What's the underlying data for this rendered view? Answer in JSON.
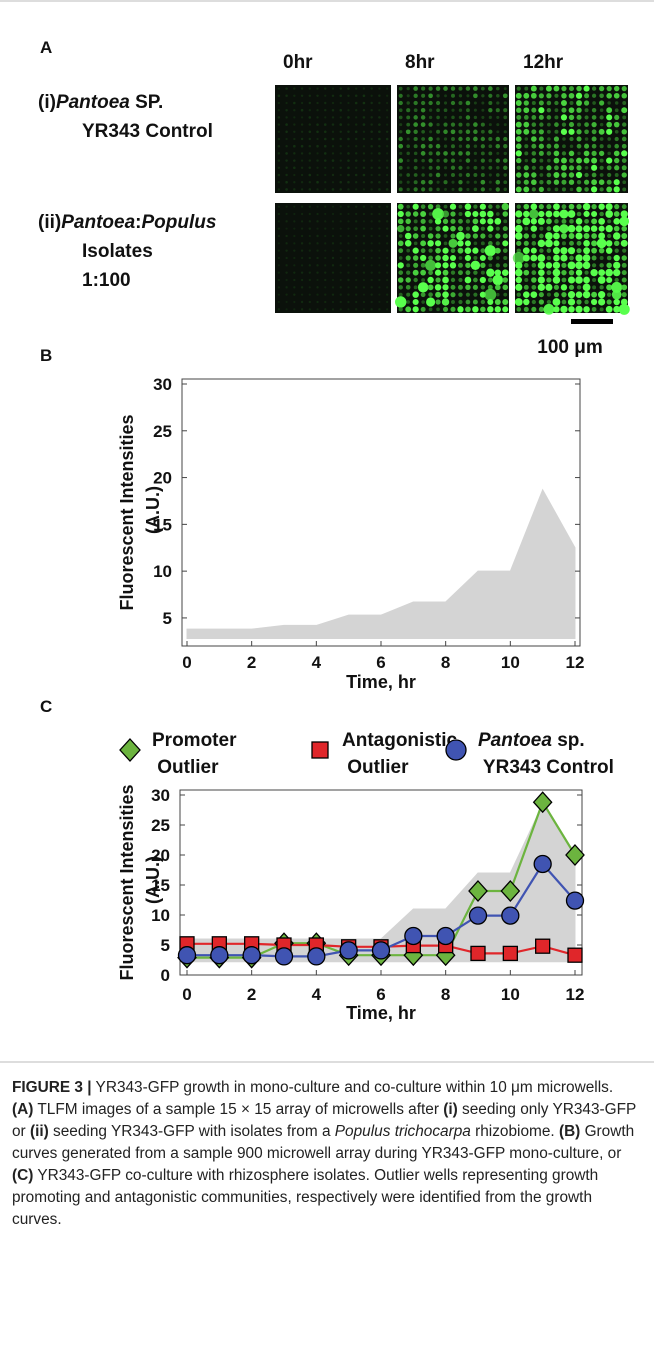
{
  "panel_a": {
    "label": "A",
    "columns": [
      "0hr",
      "8hr",
      "12hr"
    ],
    "rows": [
      [
        [
          {
            "text": "(i)"
          },
          {
            "text": "Pantoea",
            "style": "italic"
          },
          {
            "text": " SP."
          }
        ],
        [
          {
            "text": "YR343 Control"
          }
        ]
      ],
      [
        [
          {
            "text": "(ii)"
          },
          {
            "text": "Pantoea",
            "style": "italic"
          },
          {
            "text": ":"
          },
          {
            "text": "Populus",
            "style": "italic"
          }
        ],
        [
          {
            "text": "Isolates"
          }
        ],
        [
          {
            "text": "1:100"
          }
        ]
      ]
    ],
    "scale_bar": "100 μm"
  },
  "chart_data": [
    {
      "type": "line",
      "panel_label": "B",
      "x": [
        0,
        1,
        2,
        3,
        4,
        5,
        6,
        7,
        8,
        9,
        10,
        11,
        12
      ],
      "band": {
        "color": "#d4d4d4",
        "lower": [
          2.8,
          2.8,
          2.8,
          2.8,
          2.8,
          2.8,
          2.8,
          2.8,
          2.8,
          2.8,
          2.8,
          2.8,
          2.8
        ],
        "upper": [
          3.8,
          3.8,
          3.8,
          4.2,
          4.2,
          5.3,
          5.3,
          6.7,
          6.7,
          10,
          10,
          18.7,
          12.5
        ]
      },
      "xlabel": "Time, hr",
      "ylabel": "Fluorescent Intensities (A.U.)",
      "xlim": [
        0,
        12
      ],
      "ylim": [
        2,
        30
      ],
      "xticks": [
        0,
        2,
        4,
        6,
        8,
        10,
        12
      ],
      "yticks": [
        5,
        10,
        15,
        20,
        25,
        30
      ]
    },
    {
      "type": "line",
      "panel_label": "C",
      "x": [
        0,
        1,
        2,
        3,
        4,
        5,
        6,
        7,
        8,
        9,
        10,
        11,
        12
      ],
      "band": {
        "color": "#d4d4d4",
        "lower": [
          2.2,
          2.2,
          2.2,
          2.2,
          2.2,
          2.2,
          2.2,
          2.2,
          2.2,
          2.2,
          2.2,
          2.2,
          2.2
        ],
        "upper": [
          6,
          6,
          6,
          6,
          6,
          6,
          6,
          11,
          11,
          17,
          17,
          28.5,
          20
        ]
      },
      "series": [
        {
          "name": "Promoter Outlier",
          "color": "#6cb43f",
          "marker": "diamond",
          "values": [
            2.9,
            2.9,
            2.9,
            5.3,
            5.3,
            3.3,
            3.3,
            3.3,
            3.3,
            14,
            14,
            28.8,
            20
          ]
        },
        {
          "name": "Antagonistic Outlier",
          "color": "#e0262a",
          "marker": "square",
          "values": [
            5.2,
            5.2,
            5.2,
            5,
            5,
            4.7,
            4.7,
            4.9,
            4.9,
            3.6,
            3.6,
            4.8,
            3.3
          ]
        },
        {
          "name": "Pantoea sp. YR343 Control",
          "color": "#4054b2",
          "marker": "circle",
          "values": [
            3.3,
            3.3,
            3.3,
            3.1,
            3.1,
            4.1,
            4.1,
            6.5,
            6.5,
            9.9,
            9.9,
            18.5,
            12.4
          ]
        }
      ],
      "xlabel": "Time, hr",
      "ylabel": "Fluorescent Intensities (A.U.)",
      "xlim": [
        0,
        12
      ],
      "ylim": [
        0,
        30
      ],
      "xticks": [
        0,
        2,
        4,
        6,
        8,
        10,
        12
      ],
      "yticks": [
        0,
        5,
        10,
        15,
        20,
        25,
        30
      ]
    }
  ],
  "caption": {
    "runs": [
      {
        "text": "FIGURE 3 |",
        "style": "bold"
      },
      {
        "text": " YR343-GFP growth in mono-culture and co-culture within 10 μm microwells. "
      },
      {
        "text": "(A)",
        "style": "bold"
      },
      {
        "text": " TLFM images of a sample 15 × 15 array of microwells after "
      },
      {
        "text": "(i)",
        "style": "bold"
      },
      {
        "text": " seeding only YR343-GFP or "
      },
      {
        "text": "(ii)",
        "style": "bold"
      },
      {
        "text": " seeding YR343-GFP with isolates from a "
      },
      {
        "text": "Populus trichocarpa",
        "style": "italic"
      },
      {
        "text": " rhizobiome. "
      },
      {
        "text": "(B)",
        "style": "bold"
      },
      {
        "text": " Growth curves generated from a sample 900 microwell array during YR343-GFP mono-culture, or "
      },
      {
        "text": "(C)",
        "style": "bold"
      },
      {
        "text": " YR343-GFP co-culture with rhizosphere isolates. Outlier wells representing growth promoting and antagonistic communities, respectively were identified from the growth curves."
      }
    ]
  }
}
